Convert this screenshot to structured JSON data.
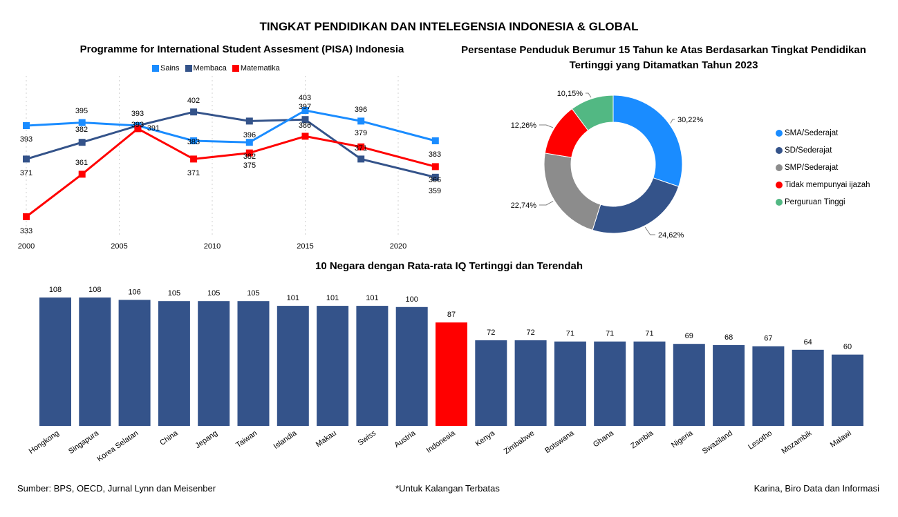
{
  "page": {
    "title": "TINGKAT PENDIDIKAN DAN INTELEGENSIA INDONESIA & GLOBAL",
    "footer": {
      "source": "Sumber: BPS,  OECD,  Jurnal Lynn dan Meisenber",
      "note": "*Untuk Kalangan Terbatas",
      "author": "Karina, Biro Data dan Informasi"
    }
  },
  "chart_data": [
    {
      "id": "pisa",
      "type": "line",
      "title": "Programme for International Student Assesment (PISA) Indonesia",
      "xlabel": "",
      "ylabel": "",
      "x": [
        2000,
        2003,
        2006,
        2009,
        2012,
        2015,
        2018,
        2022
      ],
      "x_ticks": [
        2000,
        2005,
        2010,
        2015,
        2020
      ],
      "xlim": [
        2000,
        2022
      ],
      "ylim": [
        333,
        403
      ],
      "grid": "vertical dotted",
      "legend": "top",
      "series": [
        {
          "name": "Sains",
          "color": "#1a8cff",
          "values": [
            393,
            395,
            393,
            383,
            382,
            403,
            396,
            383
          ]
        },
        {
          "name": "Membaca",
          "color": "#34538a",
          "values": [
            371,
            382,
            393,
            402,
            396,
            397,
            371,
            359
          ]
        },
        {
          "name": "Matematika",
          "color": "#ff0000",
          "values": [
            333,
            361,
            391,
            371,
            375,
            386,
            379,
            366
          ]
        }
      ]
    },
    {
      "id": "education",
      "type": "pie",
      "variant": "donut",
      "title": "Persentase Penduduk Berumur 15 Tahun ke Atas Berdasarkan Tingkat Pendidikan Tertinggi yang Ditamatkan Tahun 2023",
      "title_lines": [
        "Persentase Penduduk Berumur 15 Tahun ke Atas Berdasarkan Tingkat Pendidikan",
        "Tertinggi yang Ditamatkan Tahun 2023"
      ],
      "legend": "right",
      "slices": [
        {
          "label": "SMA/Sederajat",
          "value": 30.22,
          "display": "30,22%",
          "color": "#1a8cff"
        },
        {
          "label": "SD/Sederajat",
          "value": 24.62,
          "display": "24,62%",
          "color": "#34538a"
        },
        {
          "label": "SMP/Sederajat",
          "value": 22.74,
          "display": "22,74%",
          "color": "#8c8c8c"
        },
        {
          "label": "Tidak mempunyai ijazah",
          "value": 12.26,
          "display": "12,26%",
          "color": "#ff0000"
        },
        {
          "label": "Perguruan Tinggi",
          "value": 10.15,
          "display": "10,15%",
          "color": "#52b883"
        }
      ]
    },
    {
      "id": "iq",
      "type": "bar",
      "title": "10 Negara dengan Rata-rata IQ Tertinggi dan Terendah",
      "xlabel": "",
      "ylabel": "",
      "ylim": [
        0,
        108
      ],
      "legend": "none",
      "default_color": "#34538a",
      "highlight_color": "#ff0000",
      "highlight": "Indonesia",
      "categories": [
        "Hongkong",
        "Singapura",
        "Korea Selatan",
        "China",
        "Jepang",
        "Taiwan",
        "Islandia",
        "Makau",
        "Swiss",
        "Austria",
        "Indonesia",
        "Kenya",
        "Zimbabwe",
        "Botswana",
        "Ghana",
        "Zambia",
        "Nigeria",
        "Swaziland",
        "Lesotho",
        "Mozambik",
        "Malawi"
      ],
      "values": [
        108,
        108,
        106,
        105,
        105,
        105,
        101,
        101,
        101,
        100,
        87,
        72,
        72,
        71,
        71,
        71,
        69,
        68,
        67,
        64,
        60
      ]
    }
  ]
}
